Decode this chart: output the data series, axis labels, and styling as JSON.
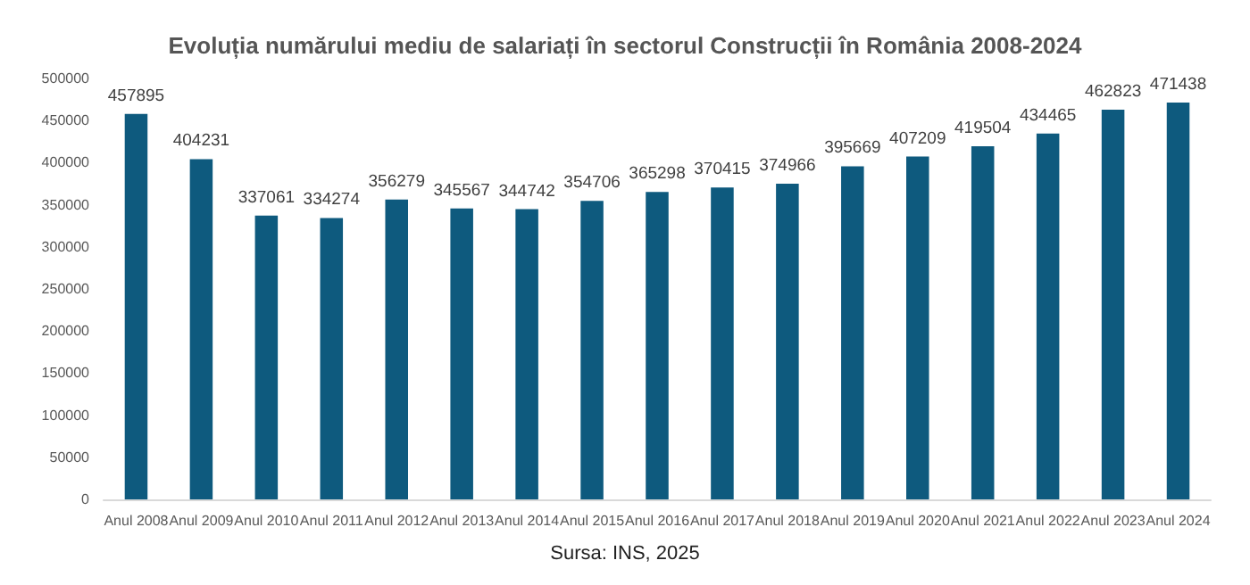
{
  "chart_data": {
    "type": "bar",
    "title": "Evoluția numărului mediu de salariați în sectorul Construcții în România 2008-2024",
    "categories": [
      "Anul 2008",
      "Anul 2009",
      "Anul 2010",
      "Anul 2011",
      "Anul 2012",
      "Anul 2013",
      "Anul 2014",
      "Anul 2015",
      "Anul 2016",
      "Anul 2017",
      "Anul 2018",
      "Anul 2019",
      "Anul 2020",
      "Anul 2021",
      "Anul 2022",
      "Anul 2023",
      "Anul 2024"
    ],
    "values": [
      457895,
      404231,
      337061,
      334274,
      356279,
      345567,
      344742,
      354706,
      365298,
      370415,
      374966,
      395669,
      407209,
      419504,
      434465,
      462823,
      471438
    ],
    "color": "#0e5a7e",
    "ylim": [
      0,
      500000
    ],
    "yticks": [
      0,
      50000,
      100000,
      150000,
      200000,
      250000,
      300000,
      350000,
      400000,
      450000,
      500000
    ],
    "grid": false,
    "data_labels": true,
    "annotations": [
      "Sursa: INS, 2025"
    ]
  }
}
